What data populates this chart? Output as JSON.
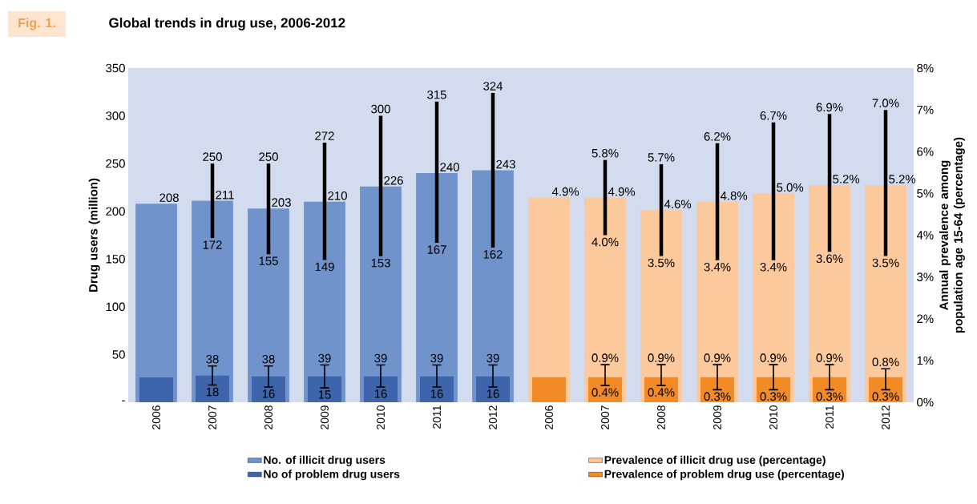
{
  "chart_data": [
    {
      "type": "bar",
      "title": "Global trends in drug use, 2006-2012",
      "ylabel": "Drug users (million)",
      "legend": "bottom",
      "categories": [
        "2006",
        "2007",
        "2008",
        "2009",
        "2010",
        "2011",
        "2012"
      ],
      "ylim": [
        0,
        350
      ],
      "yticks": [
        {
          "value": 0,
          "label": "-"
        },
        50,
        100,
        150,
        200,
        250,
        300,
        350
      ],
      "series": [
        {
          "name": "No. of illicit drug users",
          "color": "#7093cc",
          "values": [
            208,
            211,
            203,
            210,
            226,
            240,
            243
          ],
          "errors": [
            null,
            [
              172,
              250
            ],
            [
              155,
              250
            ],
            [
              149,
              272
            ],
            [
              153,
              300
            ],
            [
              167,
              315
            ],
            [
              162,
              324
            ]
          ],
          "value_labels": [
            "208",
            "211",
            "203",
            "210",
            "226",
            "240",
            "243"
          ]
        },
        {
          "name": "No of problem drug users",
          "color": "#3e65ac",
          "values": [
            26,
            28,
            27,
            27,
            27,
            27,
            27
          ],
          "errors": [
            null,
            [
              18,
              38
            ],
            [
              16,
              38
            ],
            [
              15,
              39
            ],
            [
              16,
              39
            ],
            [
              16,
              39
            ],
            [
              16,
              39
            ]
          ]
        }
      ],
      "annotations": [
        "Fig. 1.",
        {
          "text": "250",
          "x": "2007",
          "y": 250
        },
        {
          "text": "172",
          "x": "2007",
          "y": 172
        },
        {
          "text": "250",
          "x": "2008",
          "y": 250
        },
        {
          "text": "155",
          "x": "2008",
          "y": 155
        },
        {
          "text": "272",
          "x": "2009",
          "y": 272
        },
        {
          "text": "149",
          "x": "2009",
          "y": 149
        },
        {
          "text": "300",
          "x": "2010",
          "y": 300
        },
        {
          "text": "153",
          "x": "2010",
          "y": 153
        },
        {
          "text": "315",
          "x": "2011",
          "y": 315
        },
        {
          "text": "167",
          "x": "2011",
          "y": 167
        },
        {
          "text": "324",
          "x": "2012",
          "y": 324
        },
        {
          "text": "162",
          "x": "2012",
          "y": 162
        },
        {
          "text": "38",
          "x": "2007",
          "y": 38
        },
        {
          "text": "18",
          "x": "2007",
          "y": 18
        },
        {
          "text": "38",
          "x": "2008",
          "y": 38
        },
        {
          "text": "16",
          "x": "2008",
          "y": 16
        },
        {
          "text": "39",
          "x": "2009",
          "y": 39
        },
        {
          "text": "15",
          "x": "2009",
          "y": 15
        },
        {
          "text": "39",
          "x": "2010",
          "y": 39
        },
        {
          "text": "16",
          "x": "2010",
          "y": 16
        },
        {
          "text": "39",
          "x": "2011",
          "y": 39
        },
        {
          "text": "16",
          "x": "2011",
          "y": 16
        },
        {
          "text": "39",
          "x": "2012",
          "y": 39
        },
        {
          "text": "16",
          "x": "2012",
          "y": 16
        }
      ]
    },
    {
      "type": "bar",
      "ylabel": "Annual prevalence among population age 15-64 (percentage)",
      "legend": "bottom",
      "categories": [
        "2006",
        "2007",
        "2008",
        "2009",
        "2010",
        "2011",
        "2012"
      ],
      "ylim": [
        0,
        8
      ],
      "yticks": [
        {
          "value": 0,
          "label": "0%"
        },
        {
          "value": 1,
          "label": "1%"
        },
        {
          "value": 2,
          "label": "2%"
        },
        {
          "value": 3,
          "label": "3%"
        },
        {
          "value": 4,
          "label": "4%"
        },
        {
          "value": 5,
          "label": "5%"
        },
        {
          "value": 6,
          "label": "6%"
        },
        {
          "value": 7,
          "label": "7%"
        },
        {
          "value": 8,
          "label": "8%"
        }
      ],
      "series": [
        {
          "name": "Prevalence of illicit drug use (percentage)",
          "color": "#fbc99b",
          "values": [
            4.9,
            4.9,
            4.6,
            4.8,
            5.0,
            5.2,
            5.2
          ],
          "errors": [
            null,
            [
              4.0,
              5.8
            ],
            [
              3.5,
              5.7
            ],
            [
              3.4,
              6.2
            ],
            [
              3.4,
              6.7
            ],
            [
              3.6,
              6.9
            ],
            [
              3.5,
              7.0
            ]
          ],
          "value_labels": [
            "4.9%",
            "4.9%",
            "4.6%",
            "4.8%",
            "5.0%",
            "5.2%",
            "5.2%"
          ]
        },
        {
          "name": "Prevalence of problem drug use (percentage)",
          "color": "#f28a25",
          "values": [
            0.6,
            0.6,
            0.6,
            0.6,
            0.6,
            0.6,
            0.6
          ],
          "errors": [
            null,
            [
              0.4,
              0.9
            ],
            [
              0.4,
              0.9
            ],
            [
              0.3,
              0.9
            ],
            [
              0.3,
              0.9
            ],
            [
              0.3,
              0.9
            ],
            [
              0.3,
              0.8
            ]
          ]
        }
      ],
      "annotations": [
        {
          "text": "5.8%",
          "x": "2007",
          "y": 5.8
        },
        {
          "text": "4.0%",
          "x": "2007",
          "y": 4.0
        },
        {
          "text": "5.7%",
          "x": "2008",
          "y": 5.7
        },
        {
          "text": "3.5%",
          "x": "2008",
          "y": 3.5
        },
        {
          "text": "6.2%",
          "x": "2009",
          "y": 6.2
        },
        {
          "text": "3.4%",
          "x": "2009",
          "y": 3.4
        },
        {
          "text": "6.7%",
          "x": "2010",
          "y": 6.7
        },
        {
          "text": "3.4%",
          "x": "2010",
          "y": 3.4
        },
        {
          "text": "6.9%",
          "x": "2011",
          "y": 6.9
        },
        {
          "text": "3.6%",
          "x": "2011",
          "y": 3.6
        },
        {
          "text": "7.0%",
          "x": "2012",
          "y": 7.0
        },
        {
          "text": "3.5%",
          "x": "2012",
          "y": 3.5
        },
        {
          "text": "0.9%",
          "x": "2007",
          "y": 0.9
        },
        {
          "text": "0.4%",
          "x": "2007",
          "y": 0.4
        },
        {
          "text": "0.9%",
          "x": "2008",
          "y": 0.9
        },
        {
          "text": "0.4%",
          "x": "2008",
          "y": 0.4
        },
        {
          "text": "0.9%",
          "x": "2009",
          "y": 0.9
        },
        {
          "text": "0.3%",
          "x": "2009",
          "y": 0.3
        },
        {
          "text": "0.9%",
          "x": "2010",
          "y": 0.9
        },
        {
          "text": "0.3%",
          "x": "2010",
          "y": 0.3
        },
        {
          "text": "0.9%",
          "x": "2011",
          "y": 0.9
        },
        {
          "text": "0.3%",
          "x": "2011",
          "y": 0.3
        },
        {
          "text": "0.8%",
          "x": "2012",
          "y": 0.8
        },
        {
          "text": "0.3%",
          "x": "2012",
          "y": 0.3
        }
      ]
    }
  ]
}
